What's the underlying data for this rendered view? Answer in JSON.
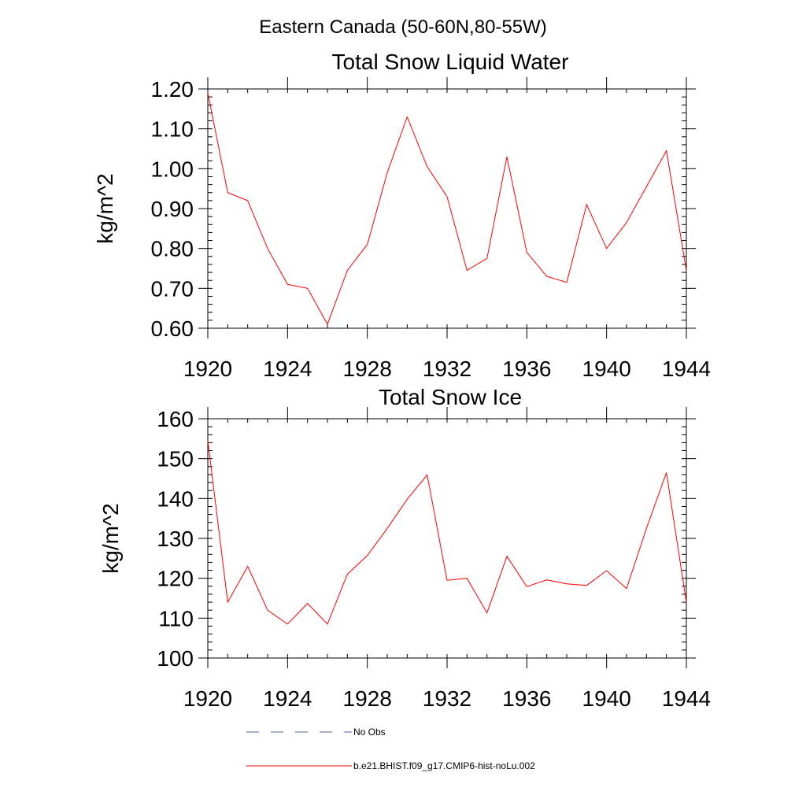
{
  "figure": {
    "title": "Eastern Canada (50-60N,80-55W)"
  },
  "chart_data": [
    {
      "type": "line",
      "title": "Total Snow Liquid Water",
      "xlabel": "",
      "ylabel": "kg/m^2",
      "xlim": [
        1920,
        1944
      ],
      "ylim": [
        0.6,
        1.2
      ],
      "xticks": [
        "1920",
        "1924",
        "1928",
        "1932",
        "1936",
        "1940",
        "1944"
      ],
      "yticks": [
        "0.60",
        "0.70",
        "0.80",
        "0.90",
        "1.00",
        "1.10",
        "1.20"
      ],
      "grid": false,
      "series": [
        {
          "name": "b.e21.BHIST.f09_g17.CMIP6-hist-noLu.002",
          "color": "#ff0000",
          "x": [
            1920,
            1921,
            1922,
            1923,
            1924,
            1925,
            1926,
            1927,
            1928,
            1929,
            1930,
            1931,
            1932,
            1933,
            1934,
            1935,
            1936,
            1937,
            1938,
            1939,
            1940,
            1941,
            1942,
            1943,
            1944
          ],
          "values": [
            1.19,
            0.94,
            0.92,
            0.8,
            0.71,
            0.7,
            0.61,
            0.745,
            0.81,
            0.99,
            1.13,
            1.005,
            0.93,
            0.745,
            0.775,
            1.03,
            0.79,
            0.73,
            0.715,
            0.91,
            0.8,
            0.865,
            0.955,
            1.045,
            0.745
          ]
        }
      ]
    },
    {
      "type": "line",
      "title": "Total Snow Ice",
      "xlabel": "",
      "ylabel": "kg/m^2",
      "xlim": [
        1920,
        1944
      ],
      "ylim": [
        100,
        160
      ],
      "xticks": [
        "1920",
        "1924",
        "1928",
        "1932",
        "1936",
        "1940",
        "1944"
      ],
      "yticks": [
        "100",
        "110",
        "120",
        "130",
        "140",
        "150",
        "160"
      ],
      "grid": false,
      "series": [
        {
          "name": "b.e21.BHIST.f09_g17.CMIP6-hist-noLu.002",
          "color": "#ff0000",
          "x": [
            1920,
            1921,
            1922,
            1923,
            1924,
            1925,
            1926,
            1927,
            1928,
            1929,
            1930,
            1931,
            1932,
            1933,
            1934,
            1935,
            1936,
            1937,
            1938,
            1939,
            1940,
            1941,
            1942,
            1943,
            1944
          ],
          "values": [
            154.5,
            114,
            123,
            112,
            108.5,
            113.7,
            108.5,
            121,
            125.7,
            132.5,
            139.8,
            145.9,
            119.5,
            120,
            111.3,
            125.5,
            117.9,
            119.6,
            118.6,
            118.2,
            121.9,
            117.4,
            132.5,
            146.5,
            114
          ]
        }
      ]
    }
  ],
  "legend": {
    "placement": "bottom",
    "entries": [
      {
        "label": "No Obs",
        "style": "dashed",
        "color": "#5060a0"
      },
      {
        "label": "b.e21.BHIST.f09_g17.CMIP6-hist-noLu.002",
        "style": "solid",
        "color": "#ff0000"
      }
    ]
  }
}
